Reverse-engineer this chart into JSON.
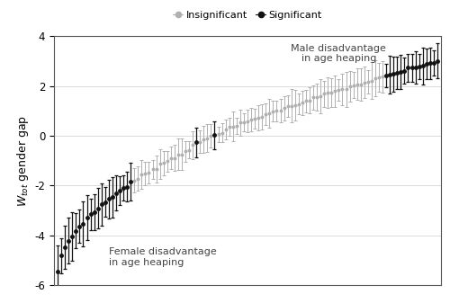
{
  "n_points": 105,
  "y_min": -6,
  "y_max": 4,
  "ylabel": "$W_{tot}$ gender gap",
  "legend_insig_label": "Insignificant",
  "legend_sig_label": "Significant",
  "annotation_female": "Female disadvantage\nin age heaping",
  "annotation_male": "Male disadvantage\nin age heaping",
  "background_color": "#ffffff",
  "insig_color": "#b0b0b0",
  "sig_color": "#111111",
  "yticks": [
    -6,
    -4,
    -2,
    0,
    2,
    4
  ],
  "sig_indices_left": [
    0,
    1,
    2,
    3,
    4,
    5,
    6,
    7,
    8,
    9,
    10,
    11,
    12,
    13,
    14,
    15,
    16,
    17,
    18,
    19,
    20
  ],
  "sig_indices_middle": [
    38,
    43
  ],
  "sig_indices_right": [
    90,
    91,
    92,
    93,
    94,
    95,
    96,
    97,
    98,
    99,
    100,
    101,
    102,
    103,
    104
  ]
}
